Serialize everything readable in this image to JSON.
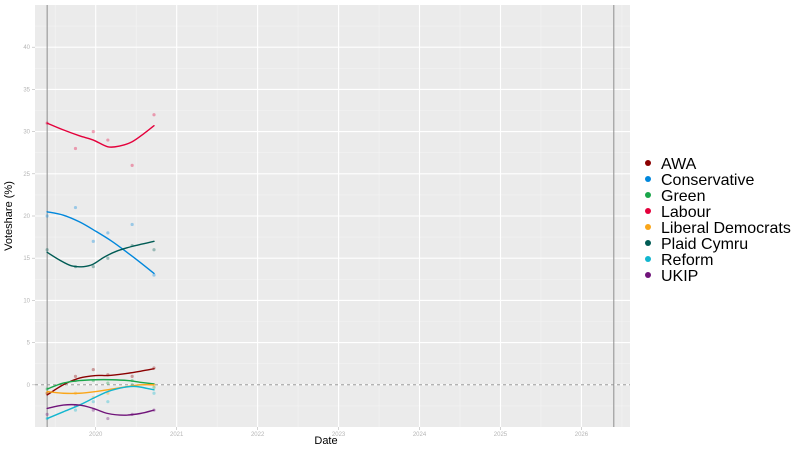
{
  "chart_data": {
    "type": "line",
    "title": "",
    "xlabel": "Date",
    "ylabel": "Voteshare (%)",
    "xlim": [
      2019.25,
      2026.6
    ],
    "ylim": [
      -5,
      45
    ],
    "x_ticks": [
      2020,
      2021,
      2022,
      2023,
      2024,
      2025,
      2026
    ],
    "x_tick_labels": [
      "2020",
      "2021",
      "2022",
      "2023",
      "2024",
      "2025",
      "2026"
    ],
    "y_ticks": [
      0,
      5,
      10,
      15,
      20,
      25,
      30,
      35,
      40
    ],
    "y_tick_labels": [
      "0",
      "5",
      "10",
      "15",
      "20",
      "25",
      "30",
      "35",
      "40"
    ],
    "reference_lines": {
      "horizontal_dashed_y": 0,
      "vertical_x": [
        2019.4,
        2026.4
      ]
    },
    "grid": true,
    "legend_position": "right",
    "series": [
      {
        "name": "AWA",
        "color": "#8b0000",
        "points": [
          [
            2019.4,
            -1.0
          ],
          [
            2019.75,
            1.0
          ],
          [
            2019.97,
            1.8
          ],
          [
            2020.15,
            1.2
          ],
          [
            2020.45,
            1.0
          ],
          [
            2020.72,
            2.0
          ]
        ],
        "trend": [
          [
            2019.4,
            -1.2
          ],
          [
            2019.6,
            0.0
          ],
          [
            2019.8,
            0.8
          ],
          [
            2020.0,
            1.1
          ],
          [
            2020.15,
            1.1
          ],
          [
            2020.35,
            1.3
          ],
          [
            2020.55,
            1.6
          ],
          [
            2020.72,
            1.9
          ]
        ]
      },
      {
        "name": "Conservative",
        "color": "#0087dc",
        "points": [
          [
            2019.4,
            20.0
          ],
          [
            2019.75,
            21.0
          ],
          [
            2019.97,
            17.0
          ],
          [
            2020.15,
            18.0
          ],
          [
            2020.45,
            19.0
          ],
          [
            2020.72,
            13.0
          ]
        ],
        "trend": [
          [
            2019.4,
            20.5
          ],
          [
            2019.6,
            20.1
          ],
          [
            2019.8,
            19.3
          ],
          [
            2020.0,
            18.2
          ],
          [
            2020.2,
            17.0
          ],
          [
            2020.4,
            15.6
          ],
          [
            2020.55,
            14.5
          ],
          [
            2020.72,
            13.2
          ]
        ]
      },
      {
        "name": "Green",
        "color": "#1aa64a",
        "points": [
          [
            2019.4,
            -0.5
          ],
          [
            2019.75,
            0.5
          ],
          [
            2019.97,
            0.5
          ],
          [
            2020.15,
            0.2
          ],
          [
            2020.45,
            0.5
          ],
          [
            2020.72,
            -0.3
          ]
        ],
        "trend": [
          [
            2019.4,
            -0.5
          ],
          [
            2019.6,
            0.2
          ],
          [
            2019.8,
            0.5
          ],
          [
            2020.0,
            0.6
          ],
          [
            2020.2,
            0.6
          ],
          [
            2020.4,
            0.5
          ],
          [
            2020.55,
            0.3
          ],
          [
            2020.72,
            0.1
          ]
        ]
      },
      {
        "name": "Labour",
        "color": "#e4003b",
        "points": [
          [
            2019.4,
            31.0
          ],
          [
            2019.75,
            28.0
          ],
          [
            2019.97,
            30.0
          ],
          [
            2020.15,
            29.0
          ],
          [
            2020.45,
            26.0
          ],
          [
            2020.72,
            32.0
          ]
        ],
        "trend": [
          [
            2019.4,
            31.0
          ],
          [
            2019.6,
            30.2
          ],
          [
            2019.8,
            29.5
          ],
          [
            2019.97,
            29.0
          ],
          [
            2020.15,
            28.2
          ],
          [
            2020.3,
            28.3
          ],
          [
            2020.45,
            28.8
          ],
          [
            2020.6,
            29.8
          ],
          [
            2020.72,
            30.7
          ]
        ]
      },
      {
        "name": "Liberal Democrats",
        "color": "#faa61a",
        "points": [
          [
            2019.4,
            -1.0
          ],
          [
            2019.75,
            -1.0
          ],
          [
            2019.97,
            -1.5
          ],
          [
            2020.15,
            -1.0
          ],
          [
            2020.45,
            0.0
          ],
          [
            2020.72,
            0.0
          ]
        ],
        "trend": [
          [
            2019.4,
            -0.8
          ],
          [
            2019.6,
            -1.0
          ],
          [
            2019.8,
            -1.0
          ],
          [
            2020.0,
            -0.8
          ],
          [
            2020.2,
            -0.5
          ],
          [
            2020.4,
            -0.2
          ],
          [
            2020.55,
            0.0
          ],
          [
            2020.72,
            0.0
          ]
        ]
      },
      {
        "name": "Plaid Cymru",
        "color": "#005b54",
        "points": [
          [
            2019.4,
            16.0
          ],
          [
            2019.75,
            14.0
          ],
          [
            2019.97,
            14.0
          ],
          [
            2020.15,
            15.0
          ],
          [
            2020.45,
            16.5
          ],
          [
            2020.72,
            16.0
          ]
        ],
        "trend": [
          [
            2019.4,
            15.7
          ],
          [
            2019.55,
            14.8
          ],
          [
            2019.7,
            14.1
          ],
          [
            2019.85,
            14.0
          ],
          [
            2019.97,
            14.3
          ],
          [
            2020.1,
            15.1
          ],
          [
            2020.25,
            15.8
          ],
          [
            2020.45,
            16.4
          ],
          [
            2020.72,
            17.0
          ]
        ]
      },
      {
        "name": "Reform",
        "color": "#12b6cf",
        "points": [
          [
            2019.4,
            -4.0
          ],
          [
            2019.75,
            -3.0
          ],
          [
            2019.97,
            -2.0
          ],
          [
            2020.15,
            -2.0
          ],
          [
            2020.45,
            0.0
          ],
          [
            2020.72,
            -1.0
          ]
        ],
        "trend": [
          [
            2019.4,
            -4.0
          ],
          [
            2019.6,
            -3.2
          ],
          [
            2019.8,
            -2.4
          ],
          [
            2019.97,
            -1.6
          ],
          [
            2020.15,
            -0.8
          ],
          [
            2020.35,
            -0.3
          ],
          [
            2020.5,
            -0.2
          ],
          [
            2020.72,
            -0.6
          ]
        ]
      },
      {
        "name": "UKIP",
        "color": "#70147a",
        "points": [
          [
            2019.4,
            -3.5
          ],
          [
            2019.75,
            -2.5
          ],
          [
            2019.97,
            -3.0
          ],
          [
            2020.15,
            -4.0
          ],
          [
            2020.45,
            -3.5
          ],
          [
            2020.72,
            -3.0
          ]
        ],
        "trend": [
          [
            2019.4,
            -2.8
          ],
          [
            2019.6,
            -2.4
          ],
          [
            2019.8,
            -2.4
          ],
          [
            2019.97,
            -2.8
          ],
          [
            2020.15,
            -3.4
          ],
          [
            2020.35,
            -3.6
          ],
          [
            2020.55,
            -3.4
          ],
          [
            2020.72,
            -3.0
          ]
        ]
      }
    ]
  }
}
